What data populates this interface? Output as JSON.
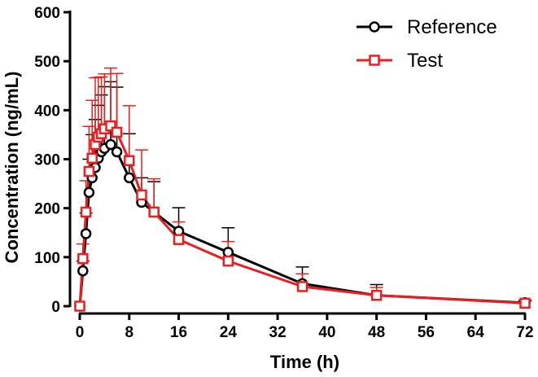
{
  "chart_data": {
    "type": "line",
    "title": "",
    "xlabel": "Time (h)",
    "ylabel": "Concentration (ng/mL)",
    "xlim": [
      0,
      72
    ],
    "ylim": [
      0,
      600
    ],
    "xticks": [
      0,
      8,
      16,
      24,
      32,
      40,
      48,
      56,
      64,
      72
    ],
    "yticks": [
      0,
      100,
      200,
      300,
      400,
      500,
      600
    ],
    "grid": false,
    "legend_position": "top-right",
    "series": [
      {
        "name": "Reference",
        "color": "#000000",
        "marker": "circle",
        "x": [
          0,
          0.5,
          1,
          1.5,
          2,
          2.5,
          3,
          3.5,
          4,
          5,
          6,
          8,
          10,
          12,
          16,
          24,
          36,
          48,
          72
        ],
        "y": [
          0,
          72,
          148,
          232,
          262,
          283,
          302,
          315,
          322,
          330,
          315,
          262,
          212,
          192,
          153,
          110,
          46,
          22,
          7
        ],
        "err": [
          0,
          20,
          42,
          68,
          88,
          98,
          108,
          116,
          126,
          128,
          132,
          90,
          50,
          62,
          48,
          50,
          34,
          22,
          5
        ]
      },
      {
        "name": "Test",
        "color": "#e8201f",
        "marker": "square",
        "x": [
          0,
          0.5,
          1,
          1.5,
          2,
          2.5,
          3,
          3.5,
          4,
          5,
          6,
          8,
          10,
          12,
          16,
          24,
          36,
          48,
          72
        ],
        "y": [
          0,
          97,
          192,
          275,
          302,
          330,
          345,
          352,
          362,
          368,
          355,
          297,
          227,
          192,
          136,
          92,
          40,
          22,
          6
        ],
        "err": [
          0,
          30,
          64,
          92,
          118,
          136,
          122,
          116,
          112,
          118,
          120,
          112,
          92,
          68,
          36,
          40,
          26,
          16,
          4
        ]
      }
    ]
  }
}
